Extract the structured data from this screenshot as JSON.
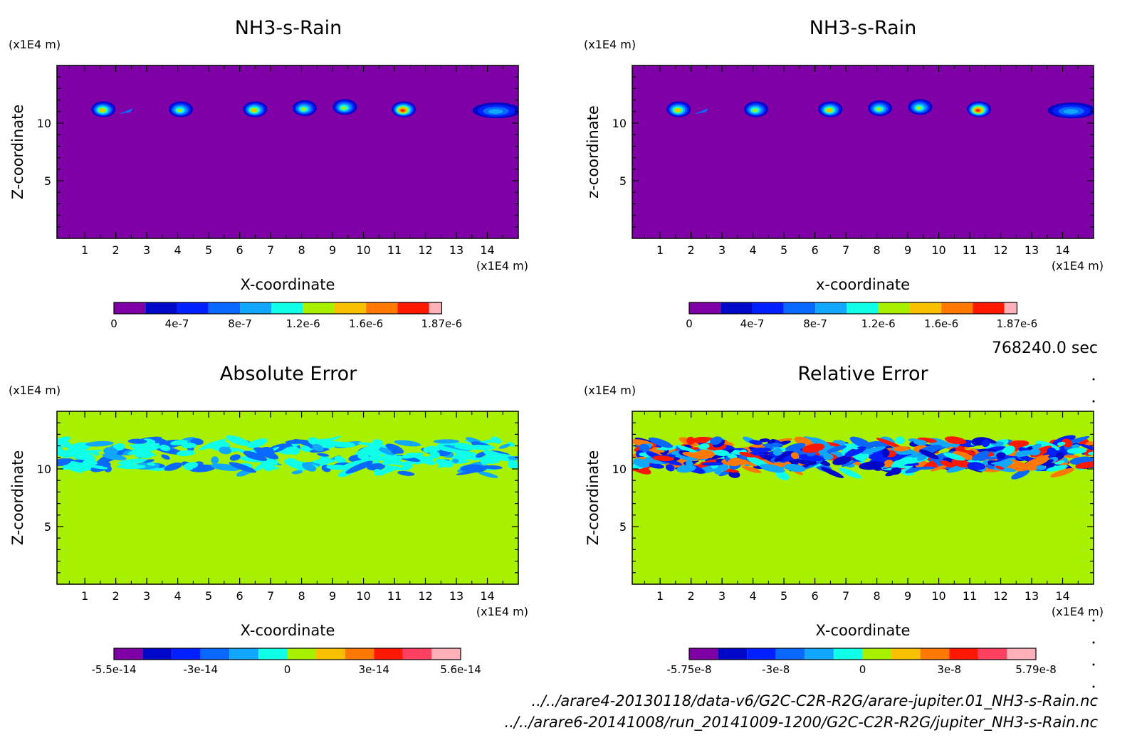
{
  "time_label": "768240.0 sec",
  "files": [
    "../../arare4-20130118/data-v6/G2C-C2R-R2G/arare-jupiter.01_NH3-s-Rain.nc",
    "../../arare6-20141008/run_20141009-1200/G2C-C2R-R2G/jupiter_NH3-s-Rain.nc"
  ],
  "colors": {
    "background": "#8000a8",
    "zero_field": "#a6f000",
    "scale": [
      "#8000a8",
      "#0008c8",
      "#0020ff",
      "#0868ff",
      "#10a8ff",
      "#10ffe8",
      "#a6f000",
      "#f8c000",
      "#ff7800",
      "#ff1800",
      "#ff4060",
      "#ffb0b8"
    ]
  },
  "chart_data": [
    {
      "type": "heatmap",
      "title": "NH3-s-Rain",
      "xlabel": "X-coordinate",
      "ylabel": "Z-coordinate",
      "x_unit": "(x1E4 m)",
      "y_unit": "(x1E4 m)",
      "xlim": [
        0.1,
        15
      ],
      "ylim": [
        0,
        15
      ],
      "x_ticks": [
        1,
        2,
        3,
        4,
        5,
        6,
        7,
        8,
        9,
        10,
        11,
        12,
        13,
        14
      ],
      "y_ticks": [
        5,
        10
      ],
      "colorbar_labels": [
        "0",
        "4e-7",
        "8e-7",
        "1.2e-6",
        "1.6e-6",
        "1.87e-6"
      ],
      "blobs": [
        {
          "x": 1.6,
          "z": 11.2,
          "peak": 1.25e-06
        },
        {
          "x": 4.1,
          "z": 11.2,
          "peak": 1.1e-06
        },
        {
          "x": 6.5,
          "z": 11.2,
          "peak": 1.25e-06
        },
        {
          "x": 8.1,
          "z": 11.3,
          "peak": 1.15e-06
        },
        {
          "x": 9.4,
          "z": 11.4,
          "peak": 1.1e-06
        },
        {
          "x": 11.3,
          "z": 11.2,
          "peak": 1.75e-06
        },
        {
          "x": 14.3,
          "z": 11.1,
          "peak": 7e-07
        }
      ]
    },
    {
      "type": "heatmap",
      "title": "NH3-s-Rain",
      "xlabel": "x-coordinate",
      "ylabel": "z-coordinate",
      "x_unit": "(x1E4 m)",
      "y_unit": "(x1E4 m)",
      "xlim": [
        0.1,
        15
      ],
      "ylim": [
        0,
        15
      ],
      "x_ticks": [
        1,
        2,
        3,
        4,
        5,
        6,
        7,
        8,
        9,
        10,
        11,
        12,
        13,
        14
      ],
      "y_ticks": [
        5,
        10
      ],
      "colorbar_labels": [
        "0",
        "4e-7",
        "8e-7",
        "1.2e-6",
        "1.6e-6",
        "1.87e-6"
      ],
      "blobs": [
        {
          "x": 1.6,
          "z": 11.2,
          "peak": 1.25e-06
        },
        {
          "x": 4.1,
          "z": 11.2,
          "peak": 1.1e-06
        },
        {
          "x": 6.5,
          "z": 11.2,
          "peak": 1.25e-06
        },
        {
          "x": 8.1,
          "z": 11.3,
          "peak": 1.15e-06
        },
        {
          "x": 9.4,
          "z": 11.4,
          "peak": 1.1e-06
        },
        {
          "x": 11.3,
          "z": 11.2,
          "peak": 1.75e-06
        },
        {
          "x": 14.3,
          "z": 11.1,
          "peak": 7e-07
        }
      ]
    },
    {
      "type": "heatmap",
      "title": "Absolute Error",
      "xlabel": "X-coordinate",
      "ylabel": "Z-coordinate",
      "x_unit": "(x1E4 m)",
      "y_unit": "(x1E4 m)",
      "xlim": [
        0.1,
        15
      ],
      "ylim": [
        0,
        15
      ],
      "x_ticks": [
        1,
        2,
        3,
        4,
        5,
        6,
        7,
        8,
        9,
        10,
        11,
        12,
        13,
        14
      ],
      "y_ticks": [
        5,
        10
      ],
      "colorbar_labels": [
        "-5.5e-14",
        "-3e-14",
        "0",
        "3e-14",
        "5.6e-14"
      ],
      "noise_band_z": [
        10,
        12.5
      ]
    },
    {
      "type": "heatmap",
      "title": "Relative Error",
      "xlabel": "X-coordinate",
      "ylabel": "Z-coordinate",
      "x_unit": "(x1E4 m)",
      "y_unit": "(x1E4 m)",
      "xlim": [
        0.1,
        15
      ],
      "ylim": [
        0,
        15
      ],
      "x_ticks": [
        1,
        2,
        3,
        4,
        5,
        6,
        7,
        8,
        9,
        10,
        11,
        12,
        13,
        14
      ],
      "y_ticks": [
        5,
        10
      ],
      "colorbar_labels": [
        "-5.75e-8",
        "-3e-8",
        "0",
        "3e-8",
        "5.79e-8"
      ],
      "noise_band_z": [
        10,
        12.5
      ]
    }
  ]
}
